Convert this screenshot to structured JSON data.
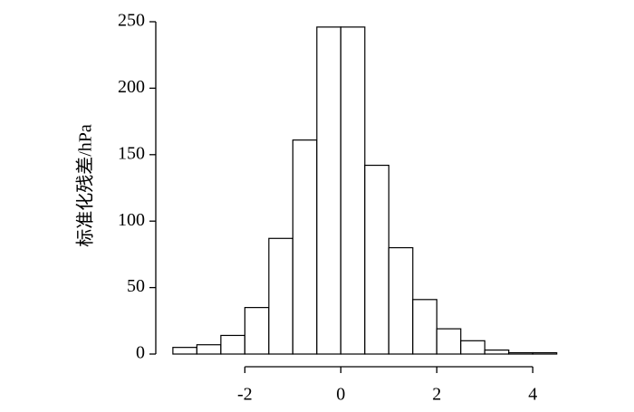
{
  "chart_data": {
    "type": "histogram",
    "ylabel": "标准化残差/hPa",
    "bins": [
      -3.5,
      -3,
      -2.5,
      -2,
      -1.5,
      -1,
      -0.5,
      0,
      0.5,
      1,
      1.5,
      2,
      2.5,
      3,
      3.5,
      4,
      4.5
    ],
    "values": [
      5,
      7,
      14,
      35,
      87,
      161,
      246,
      246,
      142,
      80,
      41,
      19,
      10,
      3,
      1,
      1
    ],
    "color": "#ffffff",
    "xlim": [
      -3.8,
      4.6
    ],
    "xticks": [
      -2,
      0,
      2,
      4
    ],
    "ylim": [
      0,
      250
    ],
    "yticks": [
      0,
      50,
      100,
      150,
      200,
      250
    ]
  }
}
